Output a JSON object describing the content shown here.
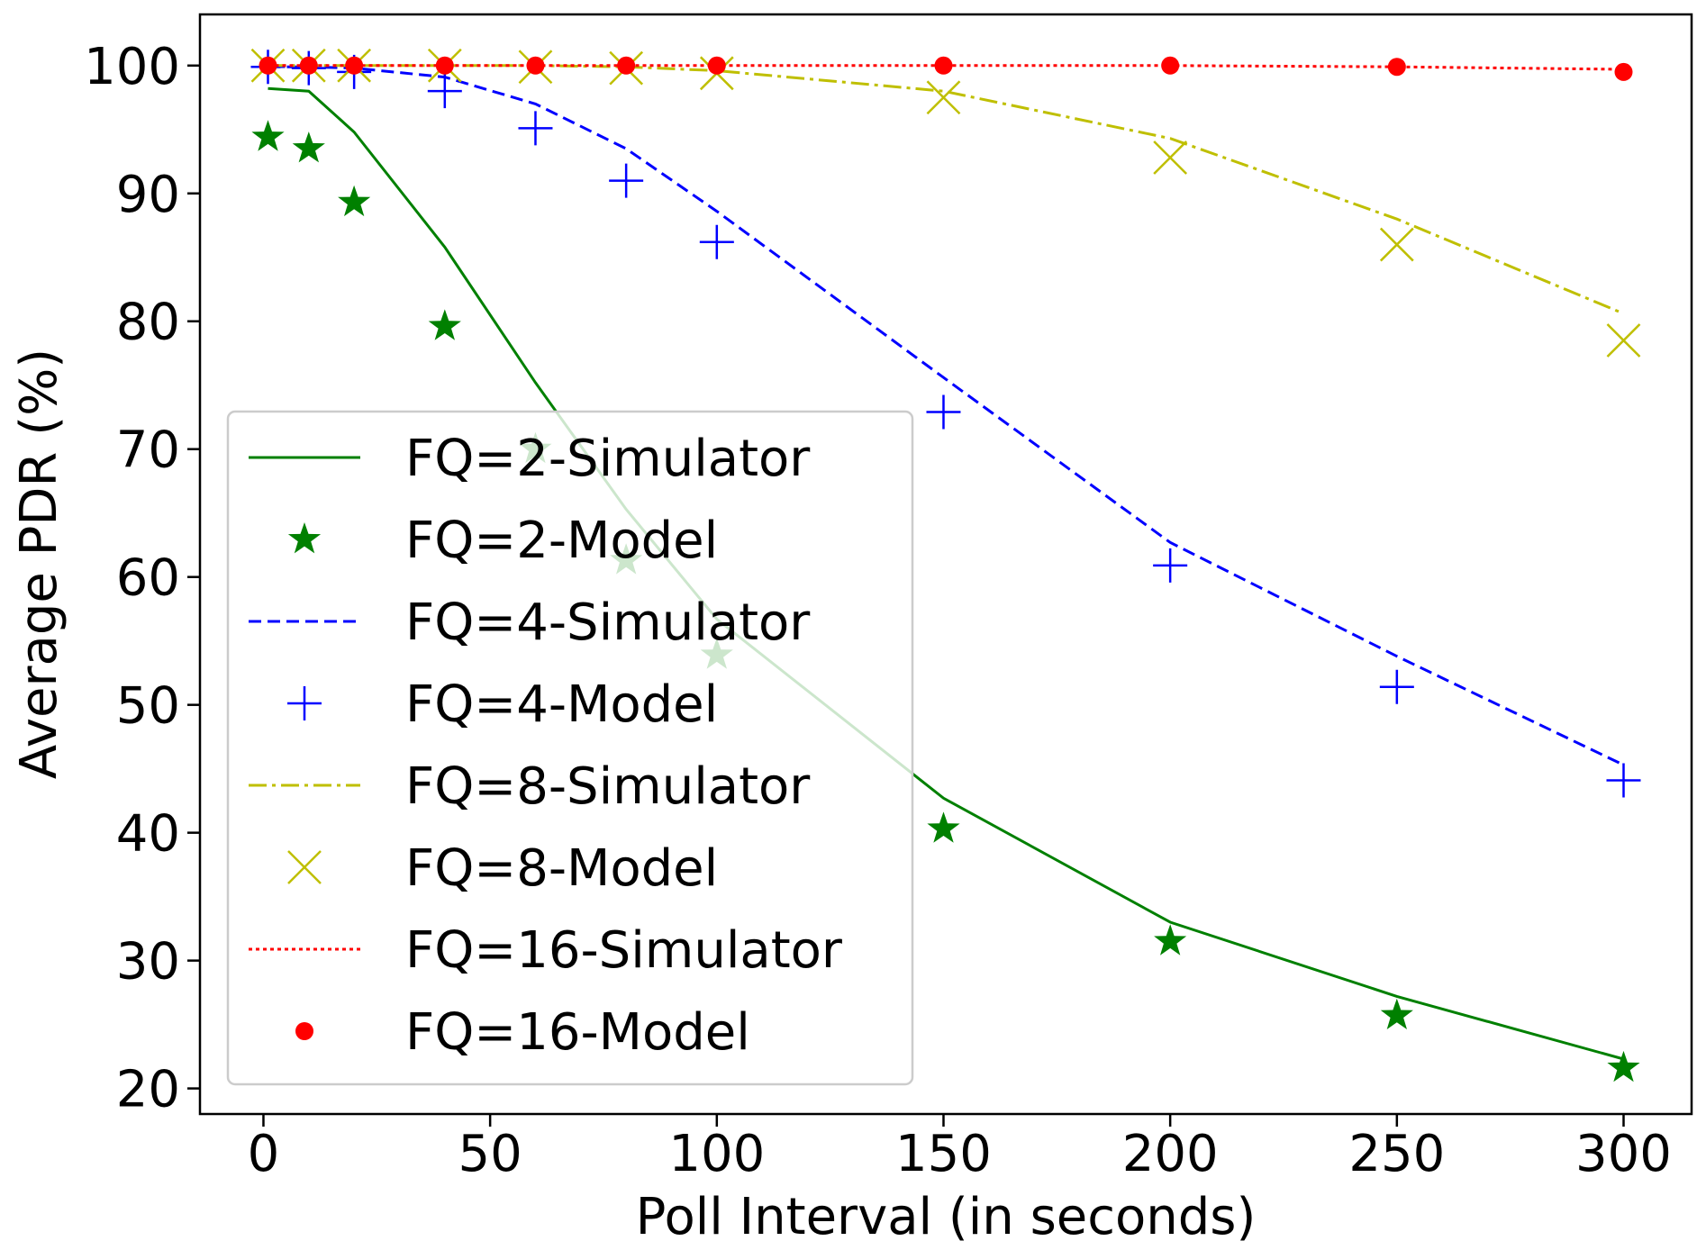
{
  "chart_data": {
    "type": "line",
    "title": "",
    "xlabel": "Poll Interval (in seconds)",
    "ylabel": "Average PDR (%)",
    "xlim": [
      -14,
      315
    ],
    "ylim": [
      18,
      104
    ],
    "xticks": [
      0,
      50,
      100,
      150,
      200,
      250,
      300
    ],
    "yticks": [
      20,
      30,
      40,
      50,
      60,
      70,
      80,
      90,
      100
    ],
    "x": [
      1,
      10,
      20,
      40,
      60,
      80,
      100,
      150,
      200,
      250,
      300
    ],
    "legend_position": "lower-left",
    "series": [
      {
        "name": "FQ=2-Simulator",
        "kind": "line",
        "style": "solid",
        "color": "#008000",
        "values": [
          98.2,
          98.0,
          94.8,
          85.8,
          75.2,
          65.3,
          56.7,
          42.7,
          33.0,
          27.2,
          22.3
        ]
      },
      {
        "name": "FQ=2-Model",
        "kind": "marker",
        "marker": "star",
        "color": "#008000",
        "values": [
          94.4,
          93.5,
          89.3,
          79.6,
          70.0,
          61.3,
          53.9,
          40.3,
          31.5,
          25.7,
          21.6
        ]
      },
      {
        "name": "FQ=4-Simulator",
        "kind": "line",
        "style": "dashed",
        "color": "#0000ff",
        "values": [
          99.9,
          99.9,
          99.8,
          99.1,
          97.0,
          93.5,
          88.6,
          75.6,
          62.7,
          53.8,
          45.3
        ]
      },
      {
        "name": "FQ=4-Model",
        "kind": "marker",
        "marker": "plus",
        "color": "#0000ff",
        "values": [
          99.9,
          99.8,
          99.5,
          98.0,
          95.1,
          91.0,
          86.2,
          72.9,
          60.9,
          51.4,
          44.1
        ]
      },
      {
        "name": "FQ=8-Simulator",
        "kind": "line",
        "style": "dashdot",
        "color": "#bfbf00",
        "values": [
          100,
          100,
          100,
          100,
          100,
          99.9,
          99.6,
          98.0,
          94.3,
          88.0,
          80.6
        ]
      },
      {
        "name": "FQ=8-Model",
        "kind": "marker",
        "marker": "x",
        "color": "#bfbf00",
        "values": [
          100,
          100,
          100,
          100,
          99.9,
          99.8,
          99.4,
          97.5,
          92.8,
          86.0,
          78.5
        ]
      },
      {
        "name": "FQ=16-Simulator",
        "kind": "line",
        "style": "dotted",
        "color": "#ff0000",
        "values": [
          100,
          100,
          100,
          100,
          100,
          100,
          100,
          100,
          100,
          99.9,
          99.7
        ]
      },
      {
        "name": "FQ=16-Model",
        "kind": "marker",
        "marker": "dot",
        "color": "#ff0000",
        "values": [
          100,
          100,
          100,
          100,
          100,
          100,
          100,
          100,
          100,
          99.9,
          99.5
        ]
      }
    ]
  }
}
